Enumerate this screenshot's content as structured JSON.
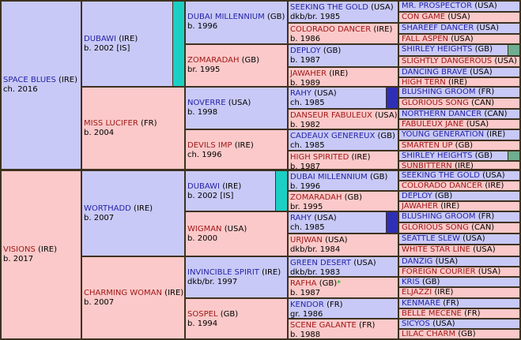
{
  "pedigree": {
    "gen1": [
      {
        "name": "SPACE BLUES",
        "origin": "(IRE)",
        "info": "ch. 2016"
      },
      {
        "name": "VISIONS",
        "origin": "(IRE)",
        "info": "b. 2017"
      }
    ],
    "gen2": [
      {
        "name": "DUBAWI",
        "origin": "(IRE)",
        "info": "b. 2002 [IS]"
      },
      {
        "name": "MISS LUCIFER",
        "origin": "(FR)",
        "info": "b. 2004"
      },
      {
        "name": "WORTHADD",
        "origin": "(IRE)",
        "info": "b. 2007"
      },
      {
        "name": "CHARMING WOMAN",
        "origin": "(IRE)",
        "info": "b. 2007"
      }
    ],
    "gen3": [
      {
        "name": "DUBAI MILLENNIUM",
        "origin": "(GB)",
        "info": "b. 1996"
      },
      {
        "name": "ZOMARADAH",
        "origin": "(GB)",
        "info": "br. 1995"
      },
      {
        "name": "NOVERRE",
        "origin": "(USA)",
        "info": "b. 1998"
      },
      {
        "name": "DEVILS IMP",
        "origin": "(IRE)",
        "info": "ch. 1996"
      },
      {
        "name": "DUBAWI",
        "origin": "(IRE)",
        "info": "b. 2002 [IS]"
      },
      {
        "name": "WIGMAN",
        "origin": "(USA)",
        "info": "b. 2000"
      },
      {
        "name": "INVINCIBLE SPIRIT",
        "origin": "(IRE)",
        "info": "dkb/br. 1997"
      },
      {
        "name": "SOSPEL",
        "origin": "(GB)",
        "info": "b. 1994"
      }
    ],
    "gen4": [
      {
        "name": "SEEKING THE GOLD",
        "origin": "(USA)",
        "info": "dkb/br. 1985"
      },
      {
        "name": "COLORADO DANCER",
        "origin": "(IRE)",
        "info": "b. 1986"
      },
      {
        "name": "DEPLOY",
        "origin": "(GB)",
        "info": "b. 1987"
      },
      {
        "name": "JAWAHER",
        "origin": "(IRE)",
        "info": "b. 1989"
      },
      {
        "name": "RAHY",
        "origin": "(USA)",
        "info": "ch. 1985"
      },
      {
        "name": "DANSEUR FABULEUX",
        "origin": "(USA)",
        "info": "b. 1982"
      },
      {
        "name": "CADEAUX GENEREUX",
        "origin": "(GB)",
        "info": "ch. 1985"
      },
      {
        "name": "HIGH SPIRITED",
        "origin": "(IRE)",
        "info": "b. 1987"
      },
      {
        "name": "DUBAI MILLENNIUM",
        "origin": "(GB)",
        "info": "b. 1996"
      },
      {
        "name": "ZOMARADAH",
        "origin": "(GB)",
        "info": "br. 1995"
      },
      {
        "name": "RAHY",
        "origin": "(USA)",
        "info": "ch. 1985"
      },
      {
        "name": "URJWAN",
        "origin": "(USA)",
        "info": "dkb/br. 1984"
      },
      {
        "name": "GREEN DESERT",
        "origin": "(USA)",
        "info": "dkb/br. 1983"
      },
      {
        "name": "RAFHA",
        "origin": "(GB)",
        "info": "b. 1987",
        "star": "*"
      },
      {
        "name": "KENDOR",
        "origin": "(FR)",
        "info": "gr. 1986"
      },
      {
        "name": "SCENE GALANTE",
        "origin": "(FR)",
        "info": "b. 1988"
      }
    ],
    "gen5": [
      {
        "name": "MR. PROSPECTOR",
        "origin": "(USA)"
      },
      {
        "name": "CON GAME",
        "origin": "(USA)"
      },
      {
        "name": "SHAREEF DANCER",
        "origin": "(USA)"
      },
      {
        "name": "FALL ASPEN",
        "origin": "(USA)"
      },
      {
        "name": "SHIRLEY HEIGHTS",
        "origin": "(GB)"
      },
      {
        "name": "SLIGHTLY DANGEROUS",
        "origin": "(USA)"
      },
      {
        "name": "DANCING BRAVE",
        "origin": "(USA)"
      },
      {
        "name": "HIGH TERN",
        "origin": "(IRE)"
      },
      {
        "name": "BLUSHING GROOM",
        "origin": "(FR)"
      },
      {
        "name": "GLORIOUS SONG",
        "origin": "(CAN)"
      },
      {
        "name": "NORTHERN DANCER",
        "origin": "(CAN)"
      },
      {
        "name": "FABULEUX JANE",
        "origin": "(USA)"
      },
      {
        "name": "YOUNG GENERATION",
        "origin": "(IRE)"
      },
      {
        "name": "SMARTEN UP",
        "origin": "(GB)"
      },
      {
        "name": "SHIRLEY HEIGHTS",
        "origin": "(GB)"
      },
      {
        "name": "SUNBITTERN",
        "origin": "(IRE)"
      },
      {
        "name": "SEEKING THE GOLD",
        "origin": "(USA)"
      },
      {
        "name": "COLORADO DANCER",
        "origin": "(IRE)"
      },
      {
        "name": "DEPLOY",
        "origin": "(GB)"
      },
      {
        "name": "JAWAHER",
        "origin": "(IRE)"
      },
      {
        "name": "BLUSHING GROOM",
        "origin": "(FR)"
      },
      {
        "name": "GLORIOUS SONG",
        "origin": "(CAN)"
      },
      {
        "name": "SEATTLE SLEW",
        "origin": "(USA)"
      },
      {
        "name": "WHITE STAR LINE",
        "origin": "(USA)"
      },
      {
        "name": "DANZIG",
        "origin": "(USA)"
      },
      {
        "name": "FOREIGN COURIER",
        "origin": "(USA)"
      },
      {
        "name": "KRIS",
        "origin": "(GB)"
      },
      {
        "name": "ELJAZZI",
        "origin": "(IRE)"
      },
      {
        "name": "KENMARE",
        "origin": "(FR)"
      },
      {
        "name": "BELLE MECENE",
        "origin": "(FR)"
      },
      {
        "name": "SICYOS",
        "origin": "(USA)"
      },
      {
        "name": "LILAC CHARM",
        "origin": "(GB)"
      }
    ]
  },
  "colors": {
    "male_bg": "#c9c9f7",
    "female_bg": "#fbc9c9",
    "male_text": "#2424a6",
    "female_text": "#a01818",
    "grid": "#3d3220",
    "mark_teal": "#1ccfc4",
    "mark_indigo": "#2f2fb5",
    "mark_green": "#6fae90",
    "star": "#11a311"
  }
}
